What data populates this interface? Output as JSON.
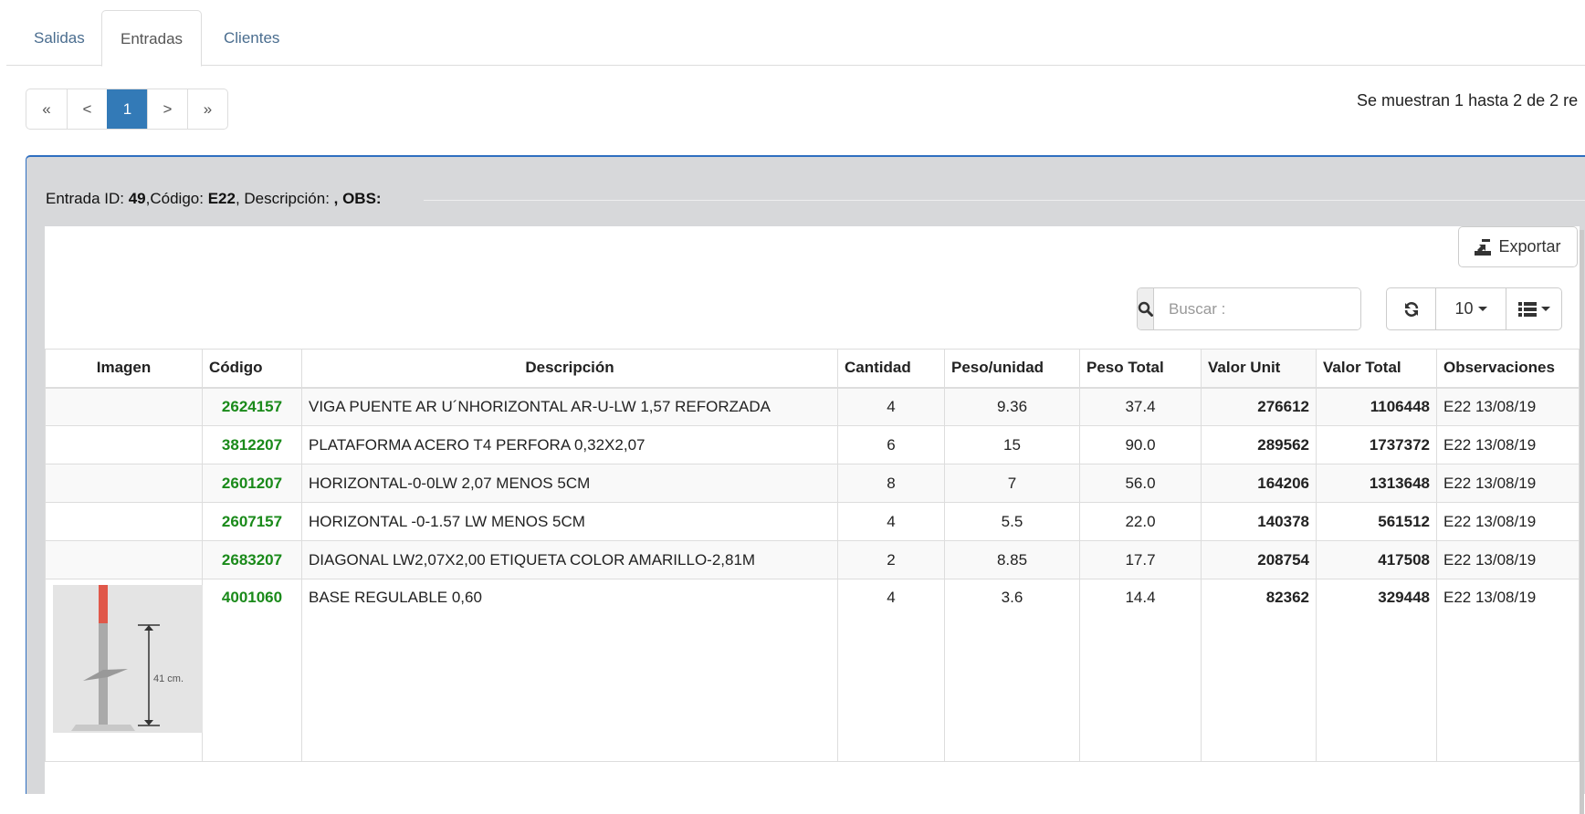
{
  "tabs": [
    {
      "label": "Salidas",
      "active": false
    },
    {
      "label": "Entradas",
      "active": true
    },
    {
      "label": "Clientes",
      "active": false
    }
  ],
  "pagination": {
    "first": "«",
    "prev": "<",
    "current": "1",
    "next": ">",
    "last": "»"
  },
  "info_text": "Se muestran 1 hasta 2 de 2 re",
  "entry": {
    "id_label": "Entrada ID: ",
    "id": "49",
    "code_label": ",Código: ",
    "code": "E22",
    "desc_label": ", Descripción: ",
    "obs": ", OBS:"
  },
  "toolbar": {
    "export_label": "Exportar",
    "search_placeholder": "Buscar :",
    "page_size": "10",
    "export_icon": "export-icon",
    "search_icon": "search-icon",
    "refresh_icon": "refresh-icon",
    "columns_icon": "list-icon"
  },
  "colors": {
    "accent": "#337ab7",
    "code": "#1a8a1a",
    "panel": "#d7d8da"
  },
  "table": {
    "headers": [
      "Imagen",
      "Código",
      "Descripción",
      "Cantidad",
      "Peso/unidad",
      "Peso Total",
      "Valor Unit",
      "Valor Total",
      "Observaciones"
    ],
    "rows": [
      {
        "codigo": "2624157",
        "descripcion": "VIGA PUENTE AR U´NHORIZONTAL AR-U-LW 1,57 REFORZADA",
        "cantidad": "4",
        "peso_unidad": "9.36",
        "peso_total": "37.4",
        "valor_unit": "276612",
        "valor_total": "1106448",
        "obs": "E22 13/08/19"
      },
      {
        "codigo": "3812207",
        "descripcion": "PLATAFORMA ACERO T4 PERFORA 0,32X2,07",
        "cantidad": "6",
        "peso_unidad": "15",
        "peso_total": "90.0",
        "valor_unit": "289562",
        "valor_total": "1737372",
        "obs": "E22 13/08/19"
      },
      {
        "codigo": "2601207",
        "descripcion": "HORIZONTAL-0-0LW 2,07 MENOS 5CM",
        "cantidad": "8",
        "peso_unidad": "7",
        "peso_total": "56.0",
        "valor_unit": "164206",
        "valor_total": "1313648",
        "obs": "E22 13/08/19"
      },
      {
        "codigo": "2607157",
        "descripcion": "HORIZONTAL -0-1.57 LW MENOS 5CM",
        "cantidad": "4",
        "peso_unidad": "5.5",
        "peso_total": "22.0",
        "valor_unit": "140378",
        "valor_total": "561512",
        "obs": "E22 13/08/19"
      },
      {
        "codigo": "2683207",
        "descripcion": "DIAGONAL LW2,07X2,00 ETIQUETA COLOR AMARILLO-2,81M",
        "cantidad": "2",
        "peso_unidad": "8.85",
        "peso_total": "17.7",
        "valor_unit": "208754",
        "valor_total": "417508",
        "obs": "E22 13/08/19"
      },
      {
        "codigo": "4001060",
        "descripcion": "BASE REGULABLE 0,60",
        "cantidad": "4",
        "peso_unidad": "3.6",
        "peso_total": "14.4",
        "valor_unit": "82362",
        "valor_total": "329448",
        "obs": "E22 13/08/19",
        "image_label": "41 cm."
      }
    ]
  }
}
